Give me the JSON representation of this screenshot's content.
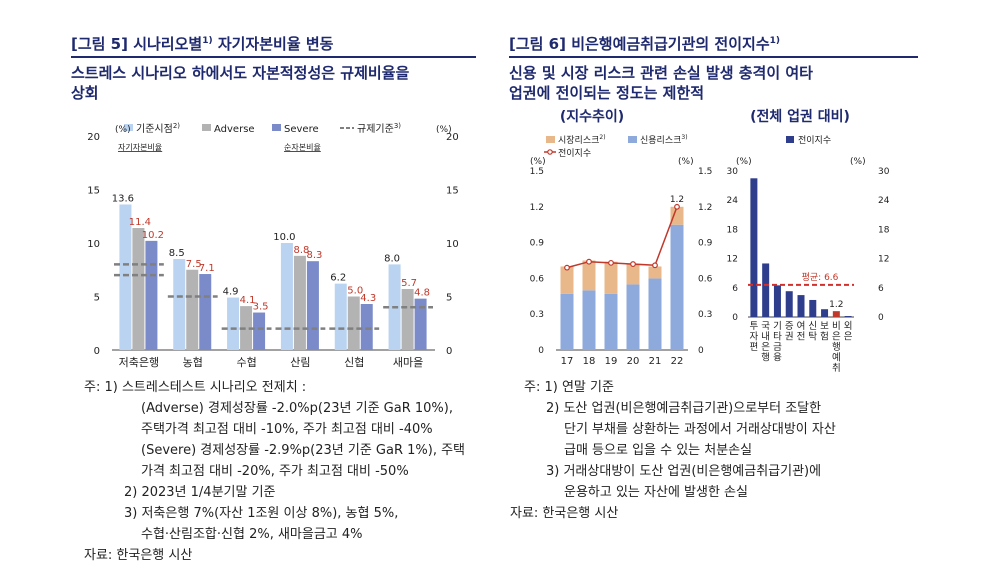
{
  "fig5": {
    "title": "[그림 5] 시나리오별",
    "title_sup": "1)",
    "title_tail": " 자기자본비율 변동",
    "headline_1": "스트레스 시나리오 하에서도 자본적정성은 규제비율을",
    "headline_2": "상회",
    "legend": [
      {
        "label": "기준시점",
        "sup": "2)",
        "color": "#b9d3f1"
      },
      {
        "label": "Adverse",
        "sup": "",
        "color": "#b3b3b3"
      },
      {
        "label": "Severe",
        "sup": "",
        "color": "#7b8bc9"
      },
      {
        "label": "규제기준",
        "sup": "3)",
        "color": "#808080"
      }
    ],
    "unit_left": "(%)",
    "unit_right": "(%)",
    "sublabel_left": "자기자본비율",
    "sublabel_right": "순자본비율",
    "notes": [
      "주: 1) 스트레스테스트 시나리오 전제치 :",
      "(Adverse) 경제성장률 -2.0%p(23년 기준 GaR 10%),",
      "주택가격 최고점 대비 -10%, 주가 최고점 대비 -40%",
      "(Severe) 경제성장률 -2.9%p(23년 기준 GaR 1%), 주택",
      "가격 최고점 대비 -20%, 주가 최고점 대비 -50%",
      "2) 2023년 1/4분기말 기준",
      "3) 저축은행 7%(자산 1조원 이상 8%), 농협 5%,",
      "수협·산림조합·신협 2%, 새마을금고 4%",
      "자료: 한국은행 시산"
    ]
  },
  "fig6": {
    "title": "[그림 6] 비은행예금취급기관의 전이지수",
    "title_sup": "1)",
    "headline_1": "신용 및 시장 리스크 관련 손실 발생 충격이 여타",
    "headline_2": "업권에 전이되는 정도는 제한적",
    "left_head": "(지수추이)",
    "right_head": "(전체 업권 대비)",
    "legend_left": [
      {
        "label": "시장리스크",
        "sup": "2)",
        "color": "#e8b88a"
      },
      {
        "label": "신용리스크",
        "sup": "3)",
        "color": "#8ea9db"
      },
      {
        "label": "전이지수",
        "sup": "",
        "color": "#c0392b"
      }
    ],
    "legend_right": [
      {
        "label": "전이지수",
        "color": "#2e3e8c"
      }
    ],
    "avg_label": "평균: 6.6",
    "unit": "(%)",
    "notes": [
      "주: 1) 연말 기준",
      "2) 도산 업권(비은행예금취급기관)으로부터 조달한",
      "단기 부채를 상환하는 과정에서 거래상대방이 자산",
      "급매 등으로 입을 수 있는 처분손실",
      "3) 거래상대방이 도산 업권(비은행예금취급기관)에",
      "운용하고 있는 자산에 발생한 손실",
      "자료: 한국은행 시산"
    ]
  },
  "chart_data": [
    {
      "type": "bar",
      "title": "시나리오별 자기자본비율 변동",
      "categories": [
        "저축은행",
        "농협",
        "수협",
        "산림",
        "신협",
        "새마을"
      ],
      "series": [
        {
          "name": "기준시점",
          "values": [
            13.6,
            8.5,
            4.9,
            10.0,
            6.2,
            8.0
          ]
        },
        {
          "name": "Adverse",
          "values": [
            11.4,
            7.5,
            4.1,
            8.8,
            5.0,
            5.7
          ]
        },
        {
          "name": "Severe",
          "values": [
            10.2,
            7.1,
            3.5,
            8.3,
            4.3,
            4.8
          ]
        }
      ],
      "regulatory": [
        [
          7,
          8
        ],
        [
          5
        ],
        [
          2
        ],
        [
          2
        ],
        [
          2
        ],
        [
          4
        ]
      ],
      "ylim": [
        0,
        20
      ],
      "yticks": [
        0,
        5,
        10,
        15,
        20
      ]
    },
    {
      "type": "bar",
      "title": "지수추이",
      "categories": [
        "17",
        "18",
        "19",
        "20",
        "21",
        "22"
      ],
      "series": [
        {
          "name": "신용리스크",
          "values": [
            0.47,
            0.5,
            0.47,
            0.55,
            0.6,
            1.05
          ]
        },
        {
          "name": "시장리스크",
          "values": [
            0.23,
            0.25,
            0.27,
            0.17,
            0.1,
            0.15
          ]
        },
        {
          "name": "전이지수",
          "values": [
            0.69,
            0.74,
            0.73,
            0.72,
            0.71,
            1.2
          ]
        }
      ],
      "ylim": [
        0,
        1.5
      ],
      "yticks": [
        0,
        0.3,
        0.6,
        0.9,
        1.2,
        1.5
      ],
      "label_last": "1.2"
    },
    {
      "type": "bar",
      "title": "전체 업권 대비",
      "categories": [
        "투자편",
        "국내은행",
        "기타금융",
        "증권",
        "여전",
        "신탁",
        "보험",
        "비은행예취",
        "외은"
      ],
      "values": [
        28.5,
        11.0,
        6.5,
        5.3,
        4.5,
        3.5,
        1.6,
        1.2,
        0.2
      ],
      "average": 6.6,
      "ylim": [
        0,
        30
      ],
      "yticks": [
        0,
        6,
        12,
        18,
        24,
        30
      ],
      "label_highlight": "1.2"
    }
  ]
}
